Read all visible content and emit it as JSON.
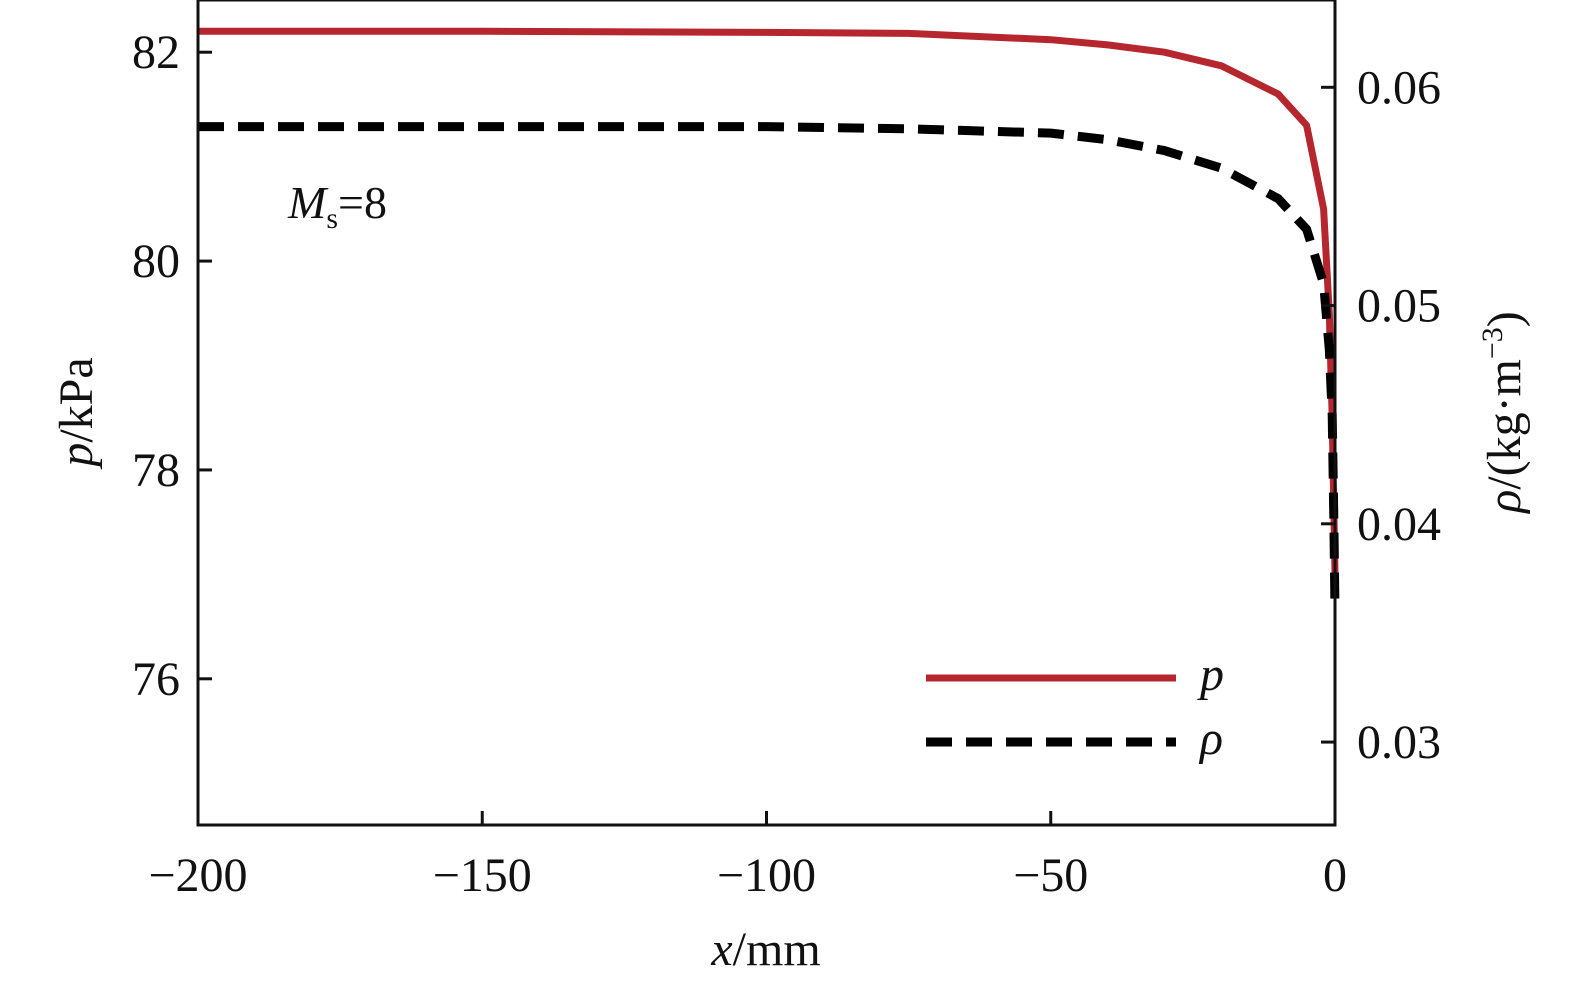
{
  "chart_data": {
    "type": "line",
    "annotation": {
      "symbol": "M",
      "subscript": "s",
      "value": "=8"
    },
    "x_axis": {
      "label_var": "x",
      "label_unit": "/mm",
      "range": [
        -200,
        0
      ],
      "ticks": [
        -200,
        -150,
        -100,
        -50,
        0
      ],
      "tick_labels": [
        "−200",
        "−150",
        "−100",
        "−50",
        "0"
      ]
    },
    "y_axis_left": {
      "label_var": "p",
      "label_unit": "/kPa",
      "range": [
        74.6,
        82.5
      ],
      "ticks": [
        76,
        78,
        80,
        82
      ],
      "tick_labels": [
        "76",
        "78",
        "80",
        "82"
      ]
    },
    "y_axis_right": {
      "label_var": "ρ",
      "label_unit_prefix": "/(kg·m",
      "label_unit_sup": "−3",
      "label_unit_suffix": ")",
      "range": [
        0.0262,
        0.064
      ],
      "ticks": [
        0.03,
        0.04,
        0.05,
        0.06
      ],
      "tick_labels": [
        "0.03",
        "0.04",
        "0.05",
        "0.06"
      ]
    },
    "legend": {
      "position": "bottom-right"
    },
    "series": [
      {
        "name": "p",
        "axis": "left",
        "color": "#b5262e",
        "style": "solid",
        "x": [
          -200,
          -150,
          -100,
          -75,
          -50,
          -40,
          -30,
          -20,
          -10,
          -5,
          -2,
          -1,
          -0.5,
          -0.2,
          0
        ],
        "y": [
          82.2,
          82.2,
          82.19,
          82.18,
          82.12,
          82.07,
          82.0,
          81.87,
          81.6,
          81.3,
          80.5,
          79.5,
          78.5,
          77.6,
          77.0
        ]
      },
      {
        "name": "ρ",
        "axis": "right",
        "color": "#000000",
        "style": "dashed",
        "x": [
          -200,
          -150,
          -100,
          -75,
          -50,
          -40,
          -30,
          -20,
          -10,
          -5,
          -2,
          -1,
          -0.5,
          -0.2,
          0
        ],
        "y": [
          0.0582,
          0.0582,
          0.0582,
          0.0581,
          0.0579,
          0.0576,
          0.0571,
          0.0563,
          0.0549,
          0.0535,
          0.051,
          0.048,
          0.045,
          0.04,
          0.036
        ]
      }
    ]
  }
}
